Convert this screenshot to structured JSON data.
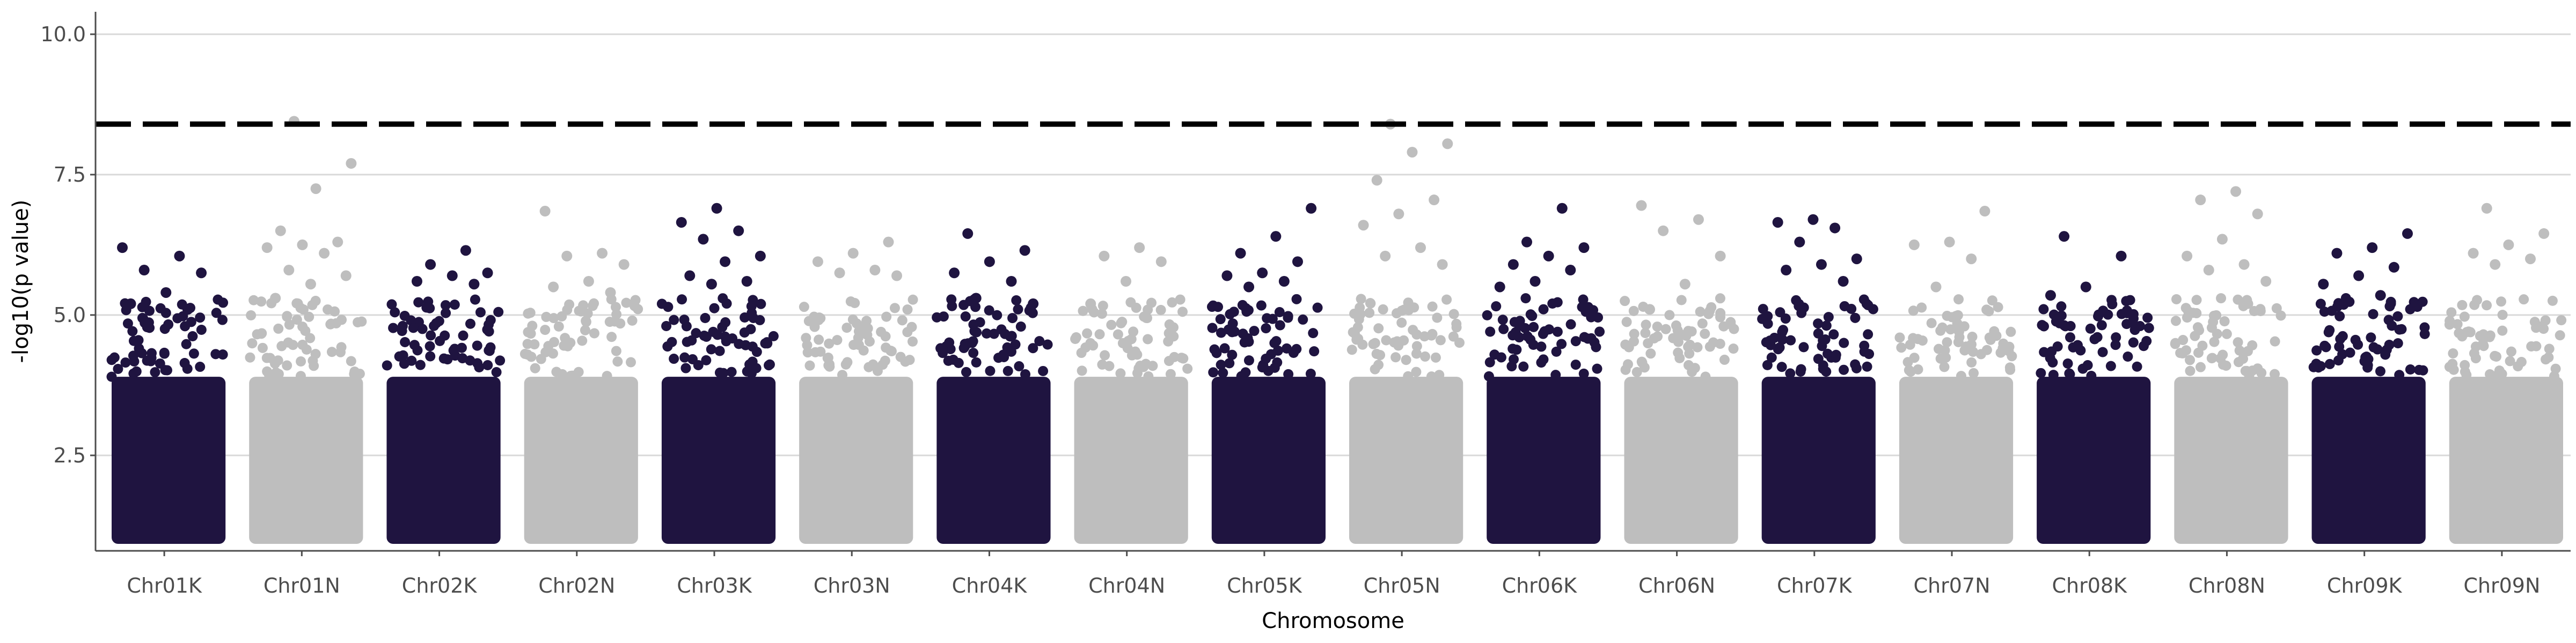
{
  "chart_data": {
    "type": "scatter",
    "title": "",
    "xlabel": "Chromosome",
    "ylabel": "-log10(p value)",
    "ylim": [
      0.8,
      10.4
    ],
    "yticks": [
      2.5,
      5.0,
      7.5,
      10.0
    ],
    "ytick_labels": [
      "2.5",
      "5.0",
      "7.5",
      "10.0"
    ],
    "categories": [
      "Chr01K",
      "Chr01N",
      "Chr02K",
      "Chr02N",
      "Chr03K",
      "Chr03N",
      "Chr04K",
      "Chr04N",
      "Chr05K",
      "Chr05N",
      "Chr06K",
      "Chr06N",
      "Chr07K",
      "Chr07N",
      "Chr08K",
      "Chr08N",
      "Chr09K",
      "Chr09N"
    ],
    "threshold": 8.4,
    "grid": "horizontal major",
    "legend": "none",
    "colors": {
      "dark": "#1f1440",
      "light": "#bebebe",
      "threshold": "#000000",
      "grid": "#d9d9d9",
      "axis": "#4d4d4d"
    },
    "series": [
      {
        "chromosome": "Chr01K",
        "values": [
          6.2,
          6.05,
          5.8,
          5.75,
          5.4,
          5.2,
          5.1
        ]
      },
      {
        "chromosome": "Chr01N",
        "values": [
          8.45,
          7.7,
          7.25,
          6.5,
          6.3,
          6.25,
          6.2,
          6.1,
          5.8,
          5.7,
          5.55,
          5.3
        ]
      },
      {
        "chromosome": "Chr02K",
        "values": [
          6.15,
          5.9,
          5.75,
          5.7,
          5.6,
          5.55
        ]
      },
      {
        "chromosome": "Chr02N",
        "values": [
          6.85,
          6.1,
          6.05,
          5.9,
          5.6,
          5.5,
          5.4
        ]
      },
      {
        "chromosome": "Chr03K",
        "values": [
          6.9,
          6.65,
          6.5,
          6.35,
          6.05,
          5.95,
          5.7,
          5.6,
          5.55
        ]
      },
      {
        "chromosome": "Chr03N",
        "values": [
          6.3,
          6.1,
          5.95,
          5.8,
          5.75,
          5.7
        ]
      },
      {
        "chromosome": "Chr04K",
        "values": [
          6.45,
          6.15,
          5.95,
          5.75,
          5.6,
          5.3,
          5.2
        ]
      },
      {
        "chromosome": "Chr04N",
        "values": [
          6.2,
          6.05,
          5.95,
          5.6,
          5.2
        ]
      },
      {
        "chromosome": "Chr05K",
        "values": [
          6.9,
          6.4,
          6.1,
          5.95,
          5.75,
          5.7,
          5.6,
          5.5
        ]
      },
      {
        "chromosome": "Chr05N",
        "values": [
          8.4,
          8.05,
          7.9,
          7.4,
          7.05,
          6.8,
          6.6,
          6.2,
          6.05,
          5.9
        ]
      },
      {
        "chromosome": "Chr06K",
        "values": [
          6.9,
          6.3,
          6.2,
          6.05,
          5.9,
          5.8,
          5.6,
          5.5
        ]
      },
      {
        "chromosome": "Chr06N",
        "values": [
          6.95,
          6.7,
          6.5,
          6.05,
          5.55,
          5.1
        ]
      },
      {
        "chromosome": "Chr07K",
        "values": [
          6.7,
          6.65,
          6.55,
          6.3,
          6.0,
          5.9,
          5.8,
          5.6
        ]
      },
      {
        "chromosome": "Chr07N",
        "values": [
          6.85,
          6.3,
          6.25,
          6.0,
          5.5
        ]
      },
      {
        "chromosome": "Chr08K",
        "values": [
          6.4,
          6.05,
          5.5,
          5.35
        ]
      },
      {
        "chromosome": "Chr08N",
        "values": [
          7.2,
          7.05,
          6.8,
          6.35,
          6.05,
          5.9,
          5.8,
          5.6
        ]
      },
      {
        "chromosome": "Chr09K",
        "values": [
          6.45,
          6.2,
          6.1,
          5.85,
          5.7,
          5.55,
          5.35
        ]
      },
      {
        "chromosome": "Chr09N",
        "values": [
          6.9,
          6.45,
          6.25,
          6.1,
          6.0,
          5.9
        ]
      }
    ]
  }
}
